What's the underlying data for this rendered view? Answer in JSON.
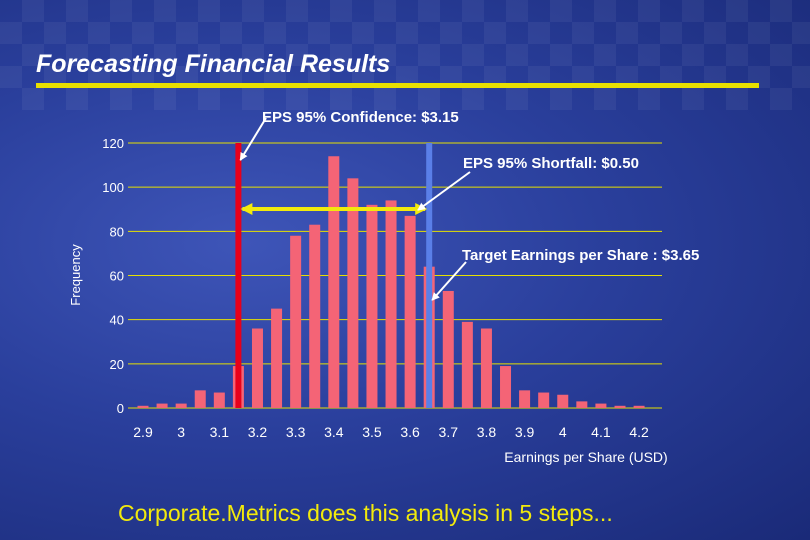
{
  "slide": {
    "title": "Forecasting Financial Results",
    "footer": "Corporate.Metrics does this analysis in 5 steps..."
  },
  "colors": {
    "bar": "#f46476",
    "confidence_line": "#e8001a",
    "target_line": "#5a7fe8",
    "shortfall_arrow": "#f2ea0c",
    "grid": "#e6e000",
    "text": "#ffffff"
  },
  "chart_data": {
    "type": "bar",
    "title": "",
    "xlabel": "Earnings per Share (USD)",
    "ylabel": "Frequency",
    "ylim": [
      0,
      120
    ],
    "yticks": [
      0,
      20,
      40,
      60,
      80,
      100,
      120
    ],
    "xtick_labels": [
      "2.9",
      "3",
      "3.1",
      "3.2",
      "3.3",
      "3.4",
      "3.5",
      "3.6",
      "3.7",
      "3.8",
      "3.9",
      "4",
      "4.1",
      "4.2"
    ],
    "bin_width": 0.05,
    "x": [
      2.9,
      2.95,
      3.0,
      3.05,
      3.1,
      3.15,
      3.2,
      3.25,
      3.3,
      3.35,
      3.4,
      3.45,
      3.5,
      3.55,
      3.6,
      3.65,
      3.7,
      3.75,
      3.8,
      3.85,
      3.9,
      3.95,
      4.0,
      4.05,
      4.1,
      4.15,
      4.2
    ],
    "values": [
      1,
      2,
      2,
      8,
      7,
      19,
      36,
      45,
      78,
      83,
      114,
      104,
      92,
      94,
      87,
      64,
      53,
      39,
      36,
      19,
      8,
      7,
      6,
      3,
      2,
      1,
      1
    ],
    "annotations": [
      {
        "text": "EPS 95% Confidence: $3.15",
        "x": 3.15
      },
      {
        "text": "EPS 95% Shortfall: $0.50",
        "from": 3.15,
        "to": 3.65
      },
      {
        "text": "Target Earnings per Share : $3.65",
        "x": 3.65
      }
    ],
    "grid": true
  }
}
